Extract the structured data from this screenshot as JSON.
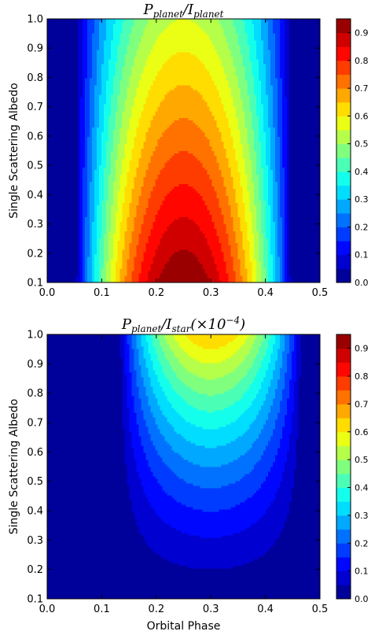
{
  "chart_data": [
    {
      "type": "heatmap",
      "subtype": "filled-contour",
      "title": {
        "parts": [
          {
            "text": "P",
            "sub": "planet"
          },
          {
            "text": "/"
          },
          {
            "text": "I",
            "sub": "planet"
          }
        ]
      },
      "xlabel": "",
      "ylabel": "Single Scattering Albedo",
      "xlim": [
        0.0,
        0.5
      ],
      "ylim": [
        0.1,
        1.0
      ],
      "xticks": [
        "0.0",
        "0.1",
        "0.2",
        "0.3",
        "0.4",
        "0.5"
      ],
      "yticks": [
        "0.1",
        "0.2",
        "0.3",
        "0.4",
        "0.5",
        "0.6",
        "0.7",
        "0.8",
        "0.9",
        "1.0"
      ],
      "colorbar": {
        "min": 0.0,
        "max": 0.95,
        "ticks": [
          "0.0",
          "0.1",
          "0.2",
          "0.3",
          "0.4",
          "0.5",
          "0.6",
          "0.7",
          "0.8",
          "0.9"
        ]
      },
      "field": {
        "description_model": "value(phase, albedo) approx",
        "peak_phase": 0.25,
        "phase_halfwidth": 0.2,
        "value_at_albedo_0.1": 0.95,
        "value_at_albedo_1.0": 0.55,
        "levels": [
          0.0,
          0.05,
          0.1,
          0.15,
          0.2,
          0.25,
          0.3,
          0.35,
          0.4,
          0.45,
          0.5,
          0.55,
          0.6,
          0.65,
          0.7,
          0.75,
          0.8,
          0.85,
          0.9,
          0.95
        ]
      },
      "grid": false
    },
    {
      "type": "heatmap",
      "subtype": "filled-contour",
      "title": {
        "parts": [
          {
            "text": "P",
            "sub": "planet"
          },
          {
            "text": "/"
          },
          {
            "text": "I",
            "sub": "star"
          },
          {
            "text": "(×10",
            "sup": "−4"
          },
          {
            "text": ")"
          }
        ]
      },
      "xlabel": "Orbital Phase",
      "ylabel": "Single Scattering Albedo",
      "xlim": [
        0.0,
        0.5
      ],
      "ylim": [
        0.1,
        1.0
      ],
      "xticks": [
        "0.0",
        "0.1",
        "0.2",
        "0.3",
        "0.4",
        "0.5"
      ],
      "yticks": [
        "0.1",
        "0.2",
        "0.3",
        "0.4",
        "0.5",
        "0.6",
        "0.7",
        "0.8",
        "0.9",
        "1.0"
      ],
      "colorbar": {
        "min": 0.0,
        "max": 0.95,
        "ticks": [
          "0.0",
          "0.1",
          "0.2",
          "0.3",
          "0.4",
          "0.5",
          "0.6",
          "0.7",
          "0.8",
          "0.9"
        ]
      },
      "field": {
        "peak_phase": 0.3,
        "phase_halfwidth": 0.17,
        "max_at_albedo_1.0": 0.65,
        "levels": [
          0.0,
          0.05,
          0.1,
          0.15,
          0.2,
          0.25,
          0.3,
          0.35,
          0.4,
          0.45,
          0.5,
          0.55,
          0.6,
          0.65,
          0.7,
          0.75,
          0.8,
          0.85,
          0.9,
          0.95
        ]
      },
      "grid": false
    }
  ]
}
